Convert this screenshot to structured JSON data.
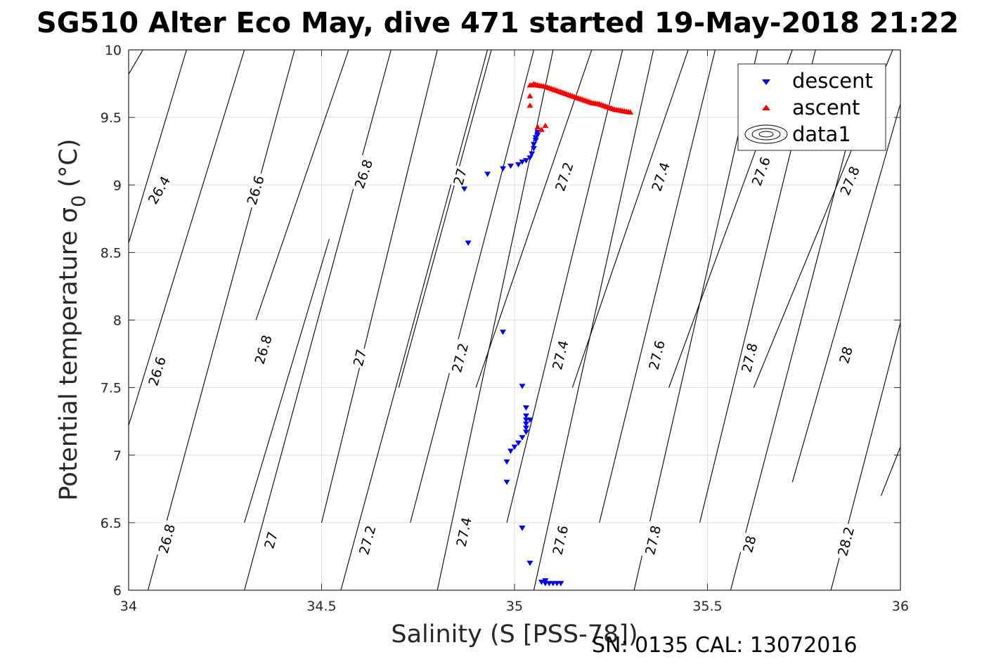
{
  "chart_data": {
    "type": "scatter",
    "title": "SG510 Alter Eco May, dive 471 started 19-May-2018 21:22",
    "xlabel": "Salinity (S [PSS-78])",
    "ylabel": "Potential temperature σ",
    "ylabel_sub": "0",
    "ylabel_unit": " (°C)",
    "footer": "SN: 0135  CAL: 13072016",
    "xlim": [
      34,
      36
    ],
    "ylim": [
      6,
      10
    ],
    "xticks": [
      "34",
      "34.5",
      "35",
      "35.5",
      "36"
    ],
    "yticks": [
      "6",
      "6.5",
      "7",
      "7.5",
      "8",
      "8.5",
      "9",
      "9.5",
      "10"
    ],
    "grid": true,
    "legend_position": "top-right",
    "legend": [
      {
        "label": "descent",
        "marker": "triangle-down",
        "color": "#0000ff"
      },
      {
        "label": "ascent",
        "marker": "triangle-up",
        "color": "#ff0000"
      },
      {
        "label": "data1",
        "marker": "contour"
      }
    ],
    "series": [
      {
        "name": "descent",
        "color": "#0000ff",
        "marker": "triangle-down",
        "x": [
          35.07,
          35.08,
          35.09,
          35.1,
          35.11,
          35.12,
          35.08,
          35.04,
          35.02,
          35.02,
          34.98,
          34.98,
          34.99,
          35.0,
          35.01,
          35.02,
          35.03,
          35.03,
          35.03,
          35.03,
          35.03,
          35.04,
          35.03,
          35.02,
          34.97,
          34.88,
          34.87,
          34.93,
          34.97,
          34.99,
          35.01,
          35.02,
          35.03,
          35.04,
          35.045,
          35.05,
          35.05,
          35.055,
          35.055,
          35.06,
          35.06
        ],
        "y": [
          6.06,
          6.05,
          6.05,
          6.05,
          6.05,
          6.05,
          6.07,
          6.2,
          6.46,
          6.46,
          6.8,
          6.95,
          7.03,
          7.06,
          7.09,
          7.13,
          7.17,
          7.2,
          7.23,
          7.26,
          7.29,
          7.26,
          7.35,
          7.51,
          7.91,
          8.57,
          8.97,
          9.08,
          9.12,
          9.14,
          9.15,
          9.17,
          9.18,
          9.2,
          9.23,
          9.27,
          9.3,
          9.33,
          9.35,
          9.37,
          9.39
        ]
      },
      {
        "name": "ascent",
        "color": "#ff0000",
        "marker": "triangle-up",
        "x": [
          35.07,
          35.06,
          35.08,
          35.04,
          35.04,
          35.04,
          35.045,
          35.05,
          35.055,
          35.06,
          35.06,
          35.08,
          35.1,
          35.12,
          35.14,
          35.16,
          35.18,
          35.2,
          35.22,
          35.24,
          35.26,
          35.28,
          35.3
        ],
        "y": [
          9.41,
          9.43,
          9.44,
          9.59,
          9.66,
          9.74,
          9.74,
          9.75,
          9.745,
          9.74,
          9.74,
          9.73,
          9.71,
          9.69,
          9.67,
          9.65,
          9.63,
          9.61,
          9.6,
          9.58,
          9.56,
          9.55,
          9.54
        ]
      }
    ],
    "contours": [
      {
        "label": "26.4",
        "x1": 34.0,
        "y1": 9.82,
        "x2": 34.037,
        "y2": 10.0,
        "label_x": 34.08,
        "label_y": 8.96
      },
      {
        "label": "26.6",
        "x1": 34.0,
        "y1": 7.22,
        "x2": 34.3,
        "y2": 10.0,
        "label_x": 34.075,
        "label_y": 7.62
      },
      {
        "label": "26.6",
        "x1": 34.0,
        "y1": 8.57,
        "x2": 34.15,
        "y2": 10.0,
        "label_x": 34.33,
        "label_y": 8.96
      },
      {
        "label": "26.8",
        "x1": 34.05,
        "y1": 6.0,
        "x2": 34.43,
        "y2": 10.0,
        "label_x": 34.1,
        "label_y": 6.38
      },
      {
        "label": "26.8",
        "x1": 34.3,
        "y1": 6.5,
        "x2": 34.52,
        "y2": 8.6,
        "label_x": 34.35,
        "label_y": 7.78
      },
      {
        "label": "26.8",
        "x1": 34.33,
        "y1": 8.0,
        "x2": 34.57,
        "y2": 10.0,
        "label_x": 34.61,
        "label_y": 9.08
      },
      {
        "label": "27",
        "x1": 34.3,
        "y1": 6.0,
        "x2": 34.68,
        "y2": 10.0,
        "label_x": 34.37,
        "label_y": 6.37
      },
      {
        "label": "27",
        "x1": 34.5,
        "y1": 6.5,
        "x2": 34.8,
        "y2": 10.0,
        "label_x": 34.6,
        "label_y": 7.72
      },
      {
        "label": "27",
        "x1": 34.7,
        "y1": 7.5,
        "x2": 34.94,
        "y2": 10.0,
        "label_x": 34.86,
        "label_y": 9.06
      },
      {
        "label": "27.2",
        "x1": 34.55,
        "y1": 6.0,
        "x2": 34.93,
        "y2": 10.0,
        "label_x": 34.62,
        "label_y": 6.37
      },
      {
        "label": "27.2",
        "x1": 34.73,
        "y1": 6.5,
        "x2": 35.05,
        "y2": 10.0,
        "label_x": 34.86,
        "label_y": 7.72
      },
      {
        "label": "27.2",
        "x1": 34.9,
        "y1": 7.5,
        "x2": 35.2,
        "y2": 10.0,
        "label_x": 35.13,
        "label_y": 9.06
      },
      {
        "label": "27.4",
        "x1": 34.8,
        "y1": 6.0,
        "x2": 35.1,
        "y2": 10.0,
        "label_x": 34.87,
        "label_y": 6.43
      },
      {
        "label": "27.4",
        "x1": 34.98,
        "y1": 6.5,
        "x2": 35.28,
        "y2": 10.0,
        "label_x": 35.12,
        "label_y": 7.74
      },
      {
        "label": "27.4",
        "x1": 35.15,
        "y1": 7.5,
        "x2": 35.45,
        "y2": 10.0,
        "label_x": 35.38,
        "label_y": 9.06
      },
      {
        "label": "27.6",
        "x1": 35.05,
        "y1": 6.0,
        "x2": 35.36,
        "y2": 10.0,
        "label_x": 35.12,
        "label_y": 6.37
      },
      {
        "label": "27.6",
        "x1": 35.22,
        "y1": 6.5,
        "x2": 35.52,
        "y2": 10.0,
        "label_x": 35.37,
        "label_y": 7.74
      },
      {
        "label": "27.6",
        "x1": 35.4,
        "y1": 7.5,
        "x2": 35.72,
        "y2": 10.0,
        "label_x": 35.64,
        "label_y": 9.1
      },
      {
        "label": "27.8",
        "x1": 35.31,
        "y1": 6.0,
        "x2": 35.63,
        "y2": 10.0,
        "label_x": 35.36,
        "label_y": 6.37
      },
      {
        "label": "27.8",
        "x1": 35.48,
        "y1": 6.5,
        "x2": 35.78,
        "y2": 10.0,
        "label_x": 35.61,
        "label_y": 7.72
      },
      {
        "label": "27.8",
        "x1": 35.62,
        "y1": 7.5,
        "x2": 35.98,
        "y2": 10.0,
        "label_x": 35.87,
        "label_y": 9.03
      },
      {
        "label": "28",
        "x1": 35.56,
        "y1": 6.0,
        "x2": 35.88,
        "y2": 9.5,
        "label_x": 35.61,
        "label_y": 6.34
      },
      {
        "label": "28",
        "x1": 35.72,
        "y1": 6.8,
        "x2": 36.0,
        "y2": 9.6,
        "label_x": 35.86,
        "label_y": 7.74
      },
      {
        "label": "28.2",
        "x1": 35.82,
        "y1": 6.0,
        "x2": 36.0,
        "y2": 7.98,
        "label_x": 35.86,
        "label_y": 6.36
      },
      {
        "label": "",
        "x1": 35.95,
        "y1": 6.7,
        "x2": 36.0,
        "y2": 7.06,
        "label_x": null,
        "label_y": null
      }
    ]
  }
}
